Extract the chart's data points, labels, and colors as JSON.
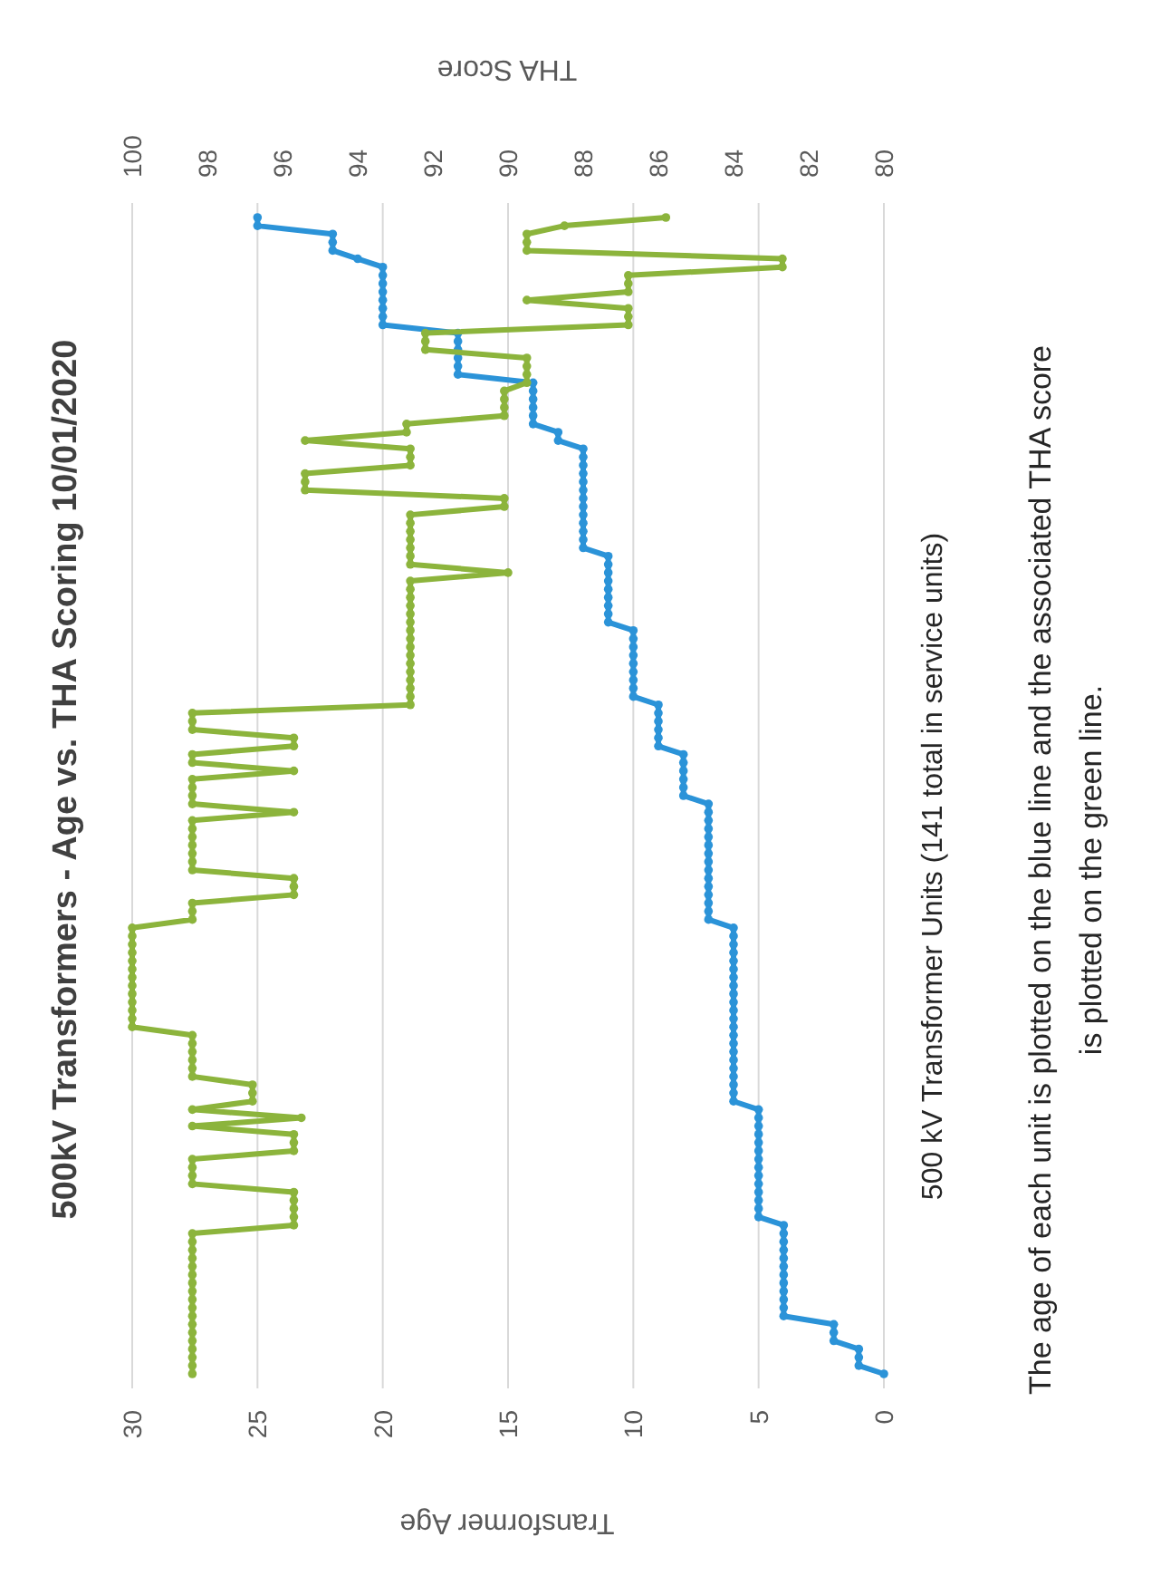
{
  "chart_data": {
    "type": "line",
    "orientation": "horizontal",
    "title": "500kV Transformers - Age vs. THA Scoring 10/01/2020",
    "ylabel": "500 kV Transformer Units (141 total in service units)",
    "xlabel": "Transformer Age",
    "x2label": "THA Score",
    "annotations": [
      "The age of each unit is plotted on the blue line and the associated THA score is plotted on the green line."
    ],
    "categories": [
      null,
      null,
      null,
      null,
      null,
      null,
      null,
      null,
      null,
      null,
      null,
      null,
      null,
      null,
      null,
      null,
      null,
      null,
      null,
      null,
      null,
      null,
      null,
      null,
      null,
      null,
      null,
      null,
      null,
      null,
      null,
      null,
      null,
      null,
      null,
      null,
      null,
      null,
      null,
      null,
      null,
      null,
      null,
      null,
      null,
      null,
      null,
      null,
      null,
      null,
      null,
      null,
      null,
      null,
      null,
      null,
      null,
      null,
      null,
      null,
      null,
      null,
      null,
      null,
      null,
      null,
      null,
      null,
      null,
      null,
      null,
      null,
      null,
      null,
      null,
      null,
      null,
      null,
      null,
      null,
      null,
      null,
      null,
      null,
      null,
      null,
      null,
      null,
      null,
      null,
      null,
      null,
      null,
      null,
      null,
      null,
      null,
      null,
      null,
      null,
      null,
      null,
      null,
      null,
      null,
      null,
      null,
      null,
      null,
      null,
      null,
      null,
      null,
      null,
      null,
      null,
      null,
      null,
      null,
      null,
      null,
      null,
      null,
      null,
      null,
      null,
      null,
      null,
      null,
      null,
      null,
      null,
      null,
      null,
      null,
      null,
      null,
      null,
      null,
      null,
      null
    ],
    "series": [
      {
        "color": "#2b93d8",
        "values": [
          25,
          25,
          22,
          22,
          22,
          21,
          20,
          20,
          20,
          20,
          20,
          20,
          20,
          20,
          17,
          17,
          17,
          17,
          17,
          17,
          14,
          14,
          14,
          14,
          14,
          14,
          13,
          13,
          12,
          12,
          12,
          12,
          12,
          12,
          12,
          12,
          12,
          12,
          12,
          12,
          12,
          11,
          11,
          11,
          11,
          11,
          11,
          11,
          11,
          11,
          10,
          10,
          10,
          10,
          10,
          10,
          10,
          10,
          10,
          9,
          9,
          9,
          9,
          9,
          9,
          8,
          8,
          8,
          8,
          8,
          8,
          7,
          7,
          7,
          7,
          7,
          7,
          7,
          7,
          7,
          7,
          7,
          7,
          7,
          7,
          7,
          6,
          6,
          6,
          6,
          6,
          6,
          6,
          6,
          6,
          6,
          6,
          6,
          6,
          6,
          6,
          6,
          6,
          6,
          6,
          6,
          6,
          6,
          5,
          5,
          5,
          5,
          5,
          5,
          5,
          5,
          5,
          5,
          5,
          5,
          5,
          5,
          4,
          4,
          4,
          4,
          4,
          4,
          4,
          4,
          4,
          4,
          4,
          4,
          2,
          2,
          2,
          1,
          1,
          1,
          0
        ]
      },
      {
        "color": "#8cb43c",
        "axis": "x2",
        "values": [
          85.8,
          88.5,
          89.5,
          89.5,
          89.5,
          82.7,
          82.7,
          86.8,
          86.8,
          86.8,
          89.5,
          86.8,
          86.8,
          86.8,
          92.2,
          92.2,
          92.2,
          89.5,
          89.5,
          89.5,
          89.5,
          90.1,
          90.1,
          90.1,
          90.1,
          92.7,
          92.7,
          95.4,
          92.6,
          92.6,
          92.6,
          95.4,
          95.4,
          95.4,
          90.1,
          90.1,
          92.6,
          92.6,
          92.6,
          92.6,
          92.6,
          92.6,
          92.6,
          90,
          92.6,
          92.6,
          92.6,
          92.6,
          92.6,
          92.6,
          92.6,
          92.6,
          92.6,
          92.6,
          92.6,
          92.6,
          92.6,
          92.6,
          92.6,
          92.6,
          98.4,
          98.4,
          98.4,
          95.7,
          95.7,
          98.4,
          98.4,
          95.7,
          98.4,
          98.4,
          98.4,
          98.4,
          95.7,
          98.4,
          98.4,
          98.4,
          98.4,
          98.4,
          98.4,
          98.4,
          95.7,
          95.7,
          95.7,
          98.4,
          98.4,
          98.4,
          100,
          100,
          100,
          100,
          100,
          100,
          100,
          100,
          100,
          100,
          100,
          100,
          100,
          98.4,
          98.4,
          98.4,
          98.4,
          98.4,
          98.4,
          96.8,
          96.8,
          96.8,
          98.4,
          95.5,
          98.4,
          95.7,
          95.7,
          95.7,
          98.4,
          98.4,
          98.4,
          98.4,
          95.7,
          95.7,
          95.7,
          95.7,
          95.7,
          98.4,
          98.4,
          98.4,
          98.4,
          98.4,
          98.4,
          98.4,
          98.4,
          98.4,
          98.4,
          98.4,
          98.4,
          98.4,
          98.4,
          98.4,
          98.4,
          98.4,
          98.4
        ]
      }
    ],
    "xlim": [
      30,
      0
    ],
    "xticks": [
      0,
      5,
      10,
      15,
      20,
      25,
      30
    ],
    "x2lim": [
      100,
      80
    ],
    "x2ticks": [
      80,
      82,
      84,
      86,
      88,
      90,
      92,
      94,
      96,
      98,
      100
    ],
    "grid": "x",
    "marker": "circle",
    "line_style": "solid"
  }
}
